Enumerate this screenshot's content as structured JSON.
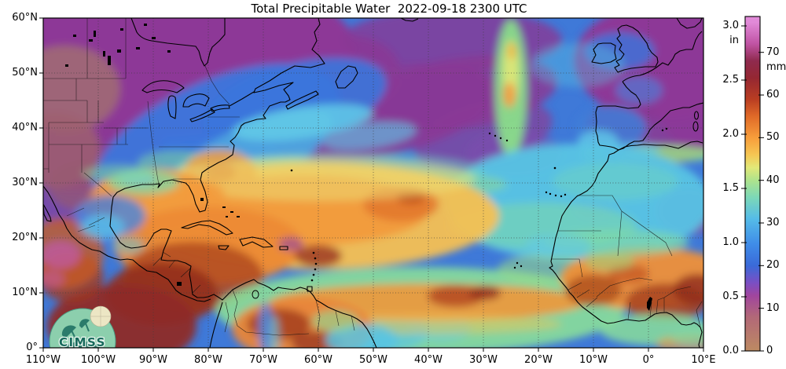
{
  "title": "Total Precipitable Water  2022-09-18 2300 UTC",
  "map": {
    "x_axis": {
      "ticks": [
        "110°W",
        "100°W",
        "90°W",
        "80°W",
        "70°W",
        "60°W",
        "50°W",
        "40°W",
        "30°W",
        "20°W",
        "10°W",
        "0°",
        "10°E"
      ]
    },
    "y_axis": {
      "ticks": [
        "60°N",
        "50°N",
        "40°N",
        "30°N",
        "20°N",
        "10°N",
        "0°"
      ]
    }
  },
  "colorbar": {
    "units": {
      "inches": "in",
      "millimeters": "mm"
    },
    "in_ticks": [
      {
        "value": 0.0,
        "label": "0.0"
      },
      {
        "value": 0.5,
        "label": "0.5"
      },
      {
        "value": 1.0,
        "label": "1.0"
      },
      {
        "value": 1.5,
        "label": "1.5"
      },
      {
        "value": 2.0,
        "label": "2.0"
      },
      {
        "value": 2.5,
        "label": "2.5"
      },
      {
        "value": 3.0,
        "label": "3.0"
      }
    ],
    "mm_ticks": [
      {
        "value": 0,
        "label": "0"
      },
      {
        "value": 10,
        "label": "10"
      },
      {
        "value": 20,
        "label": "20"
      },
      {
        "value": 30,
        "label": "30"
      },
      {
        "value": 40,
        "label": "40"
      },
      {
        "value": 50,
        "label": "50"
      },
      {
        "value": 60,
        "label": "60"
      },
      {
        "value": 70,
        "label": "70"
      }
    ]
  },
  "logo": {
    "text": "CIMSS"
  },
  "chart_data": {
    "type": "heatmap",
    "variable": "Total Precipitable Water",
    "valid_time": "2022-09-18 2300 UTC",
    "projection": "cylindrical latitude-longitude grid",
    "lon_range_deg": [
      -110,
      10
    ],
    "lat_range_deg": [
      0,
      60
    ],
    "grid_spacing_deg": 10,
    "value_range": {
      "in": [
        0.0,
        3.0
      ],
      "mm": [
        0,
        70
      ]
    },
    "palette_mm": [
      {
        "mm": 0,
        "color": "#bd8a62"
      },
      {
        "mm": 8,
        "color": "#b26878"
      },
      {
        "mm": 13,
        "color": "#a0459e"
      },
      {
        "mm": 16,
        "color": "#7a4fc4"
      },
      {
        "mm": 20,
        "color": "#3a6ad8"
      },
      {
        "mm": 25,
        "color": "#3f8ce8"
      },
      {
        "mm": 31,
        "color": "#55bce8"
      },
      {
        "mm": 36,
        "color": "#7cd8b8"
      },
      {
        "mm": 40,
        "color": "#aee38c"
      },
      {
        "mm": 43,
        "color": "#e2e878"
      },
      {
        "mm": 46,
        "color": "#f6c653"
      },
      {
        "mm": 50,
        "color": "#f79d3b"
      },
      {
        "mm": 55,
        "color": "#e06a28"
      },
      {
        "mm": 59,
        "color": "#b93d22"
      },
      {
        "mm": 64,
        "color": "#952732"
      },
      {
        "mm": 68,
        "color": "#8f2a4e"
      },
      {
        "mm": 72,
        "color": "#c054a4"
      },
      {
        "mm": 77,
        "color": "#e18ad8"
      }
    ],
    "features": [
      "Very dry purple air mass (<0.6 in) over central and eastern Canada extending into the northwest Atlantic near 40-55N",
      "Purple dry air also over most of western Europe and over the eastern Sahara",
      "Blue band (0.8-1.2 in / 20-30 mm) from the central US Great Lakes region across the North Atlantic toward the British Isles",
      "Cyan-green moist tongue (30-40 mm) in the eastern Atlantic from the Azores toward Iberia and Morocco, with a narrow green/orange streak near 30W between 40-60N",
      "Broad yellow-orange subtropical moisture (45-55 mm) over the Gulf of Mexico, the western subtropical Atlantic and an orange blob off the Carolinas",
      "Very moist dark-red/maroon air (60-70 mm) over the Caribbean, Central America and the eastern tropical Pacific, with small pink/magenta maxima >70 mm",
      "Orange-brown ITCZ moisture band along 5-15N across the tropical Atlantic and the African Sahel with embedded dark red maxima",
      "Dry blue/purple Saharan air over northwest Africa; green maritime air along the Gulf of Guinea coast",
      "Blue/cyan dry stripes along the Mexican highlands and the Andes"
    ]
  }
}
